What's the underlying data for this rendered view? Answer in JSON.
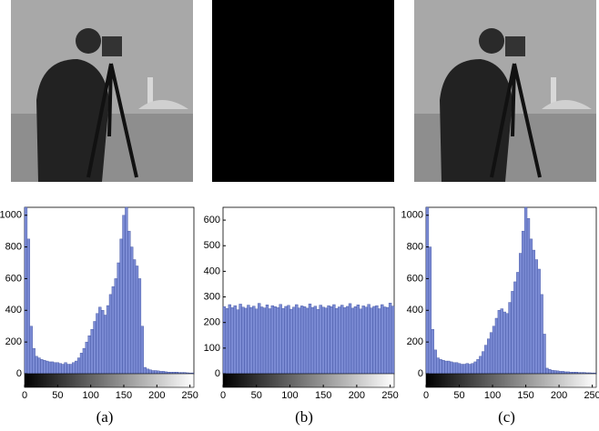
{
  "chart_data": [
    {
      "type": "histogram",
      "caption": "(a)",
      "color": "#7b8bd4",
      "bins": [
        0,
        4,
        8,
        12,
        16,
        20,
        24,
        28,
        32,
        36,
        40,
        44,
        48,
        52,
        56,
        60,
        64,
        68,
        72,
        76,
        80,
        84,
        88,
        92,
        96,
        100,
        104,
        108,
        112,
        116,
        120,
        124,
        128,
        132,
        136,
        140,
        144,
        148,
        152,
        156,
        160,
        164,
        168,
        172,
        176,
        180,
        184,
        188,
        192,
        196,
        200,
        204,
        208,
        212,
        216,
        220,
        224,
        228,
        232,
        236,
        240,
        244,
        248,
        252,
        256
      ],
      "values": [
        1050,
        850,
        300,
        160,
        110,
        100,
        90,
        85,
        80,
        75,
        75,
        70,
        70,
        65,
        60,
        70,
        60,
        60,
        70,
        80,
        100,
        130,
        160,
        200,
        240,
        280,
        330,
        380,
        420,
        400,
        370,
        430,
        500,
        550,
        600,
        700,
        850,
        1000,
        1050,
        900,
        800,
        720,
        680,
        600,
        300,
        40,
        30,
        25,
        20,
        20,
        18,
        15,
        15,
        12,
        10,
        10,
        10,
        10,
        8,
        8,
        8,
        6,
        5,
        5
      ],
      "xlim": [
        0,
        256
      ],
      "ylim": [
        0,
        1050
      ],
      "xticks": [
        0,
        50,
        100,
        150,
        200,
        250
      ],
      "yticks": [
        0,
        200,
        400,
        600,
        800,
        1000
      ]
    },
    {
      "type": "histogram",
      "caption": "(b)",
      "color": "#7b8bd4",
      "bins": [
        0,
        4,
        8,
        12,
        16,
        20,
        24,
        28,
        32,
        36,
        40,
        44,
        48,
        52,
        56,
        60,
        64,
        68,
        72,
        76,
        80,
        84,
        88,
        92,
        96,
        100,
        104,
        108,
        112,
        116,
        120,
        124,
        128,
        132,
        136,
        140,
        144,
        148,
        152,
        156,
        160,
        164,
        168,
        172,
        176,
        180,
        184,
        188,
        192,
        196,
        200,
        204,
        208,
        212,
        216,
        220,
        224,
        228,
        232,
        236,
        240,
        244,
        248,
        252,
        256
      ],
      "values": [
        262,
        255,
        270,
        258,
        266,
        250,
        272,
        260,
        256,
        268,
        259,
        264,
        253,
        275,
        261,
        257,
        269,
        254,
        266,
        262,
        258,
        271,
        255,
        263,
        267,
        252,
        260,
        270,
        257,
        265,
        262,
        256,
        273,
        259,
        264,
        251,
        268,
        260,
        257,
        266,
        262,
        270,
        255,
        261,
        268,
        258,
        263,
        274,
        256,
        262,
        269,
        253,
        265,
        260,
        271,
        257,
        263,
        266,
        254,
        270,
        261,
        259,
        276,
        264
      ],
      "xlim": [
        0,
        256
      ],
      "ylim": [
        0,
        650
      ],
      "xticks": [
        0,
        50,
        100,
        150,
        200,
        250
      ],
      "yticks": [
        0,
        100,
        200,
        300,
        400,
        500,
        600
      ]
    },
    {
      "type": "histogram",
      "caption": "(c)",
      "color": "#7b8bd4",
      "bins": [
        0,
        4,
        8,
        12,
        16,
        20,
        24,
        28,
        32,
        36,
        40,
        44,
        48,
        52,
        56,
        60,
        64,
        68,
        72,
        76,
        80,
        84,
        88,
        92,
        96,
        100,
        104,
        108,
        112,
        116,
        120,
        124,
        128,
        132,
        136,
        140,
        144,
        148,
        152,
        156,
        160,
        164,
        168,
        172,
        176,
        180,
        184,
        188,
        192,
        196,
        200,
        204,
        208,
        212,
        216,
        220,
        224,
        228,
        232,
        236,
        240,
        244,
        248,
        252,
        256
      ],
      "values": [
        1050,
        800,
        280,
        150,
        100,
        90,
        85,
        80,
        80,
        75,
        70,
        70,
        65,
        60,
        60,
        65,
        60,
        65,
        75,
        90,
        110,
        140,
        180,
        220,
        260,
        300,
        350,
        400,
        410,
        390,
        380,
        450,
        520,
        580,
        640,
        760,
        900,
        1050,
        980,
        850,
        780,
        720,
        660,
        500,
        250,
        35,
        28,
        22,
        20,
        18,
        15,
        15,
        12,
        12,
        10,
        10,
        10,
        8,
        8,
        8,
        6,
        6,
        5,
        5
      ],
      "xlim": [
        0,
        256
      ],
      "ylim": [
        0,
        1050
      ],
      "xticks": [
        0,
        50,
        100,
        150,
        200,
        250
      ],
      "yticks": [
        0,
        200,
        400,
        600,
        800,
        1000
      ]
    }
  ]
}
